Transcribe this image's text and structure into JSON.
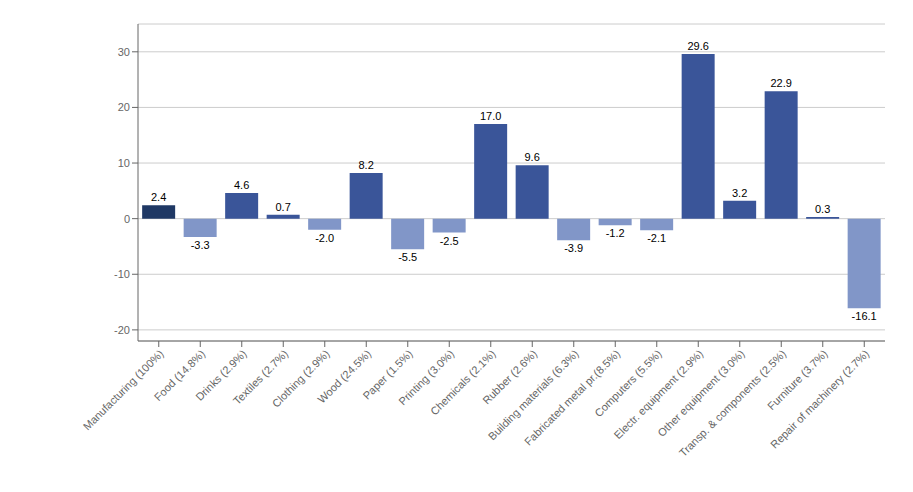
{
  "chart_data": {
    "type": "bar",
    "categories": [
      "Manufacturing (100%)",
      "Food (14.8%)",
      "Drinks (2.9%)",
      "Textiles (2.7%)",
      "Clothing (2.9%)",
      "Wood (24.5%)",
      "Paper (1.5%)",
      "Printing (3.0%)",
      "Chemicals (2.1%)",
      "Rubber (2.6%)",
      "Building materials (6.3%)",
      "Fabricated metal pr.(8.5%)",
      "Computers (5.5%)",
      "Electr. equipment (2.9%)",
      "Other equipment (3.0%)",
      "Transp. & components (2.5%)",
      "Furniture (3.7%)",
      "Repair of machinery (2.7%)"
    ],
    "values": [
      2.4,
      -3.3,
      4.6,
      0.7,
      -2.0,
      8.2,
      -5.5,
      -2.5,
      17.0,
      9.6,
      -3.9,
      -1.2,
      -2.1,
      29.6,
      3.2,
      22.9,
      0.3,
      -16.1
    ],
    "value_labels": [
      "2.4",
      "-3.3",
      "4.6",
      "0.7",
      "-2.0",
      "8.2",
      "-5.5",
      "-2.5",
      "17.0",
      "9.6",
      "-3.9",
      "-1.2",
      "-2.1",
      "29.6",
      "3.2",
      "22.9",
      "0.3",
      "-16.1"
    ],
    "colors": [
      "#1f3864",
      "#8196c8",
      "#3a5599",
      "#3a5599",
      "#8196c8",
      "#3a5599",
      "#8196c8",
      "#8196c8",
      "#3a5599",
      "#3a5599",
      "#8196c8",
      "#8196c8",
      "#8196c8",
      "#3a5599",
      "#3a5599",
      "#3a5599",
      "#3a5599",
      "#8196c8"
    ],
    "ylim": [
      -22,
      35
    ],
    "yticks": [
      -20,
      -10,
      0,
      10,
      20,
      30
    ],
    "grid": true,
    "data_labels": true
  }
}
